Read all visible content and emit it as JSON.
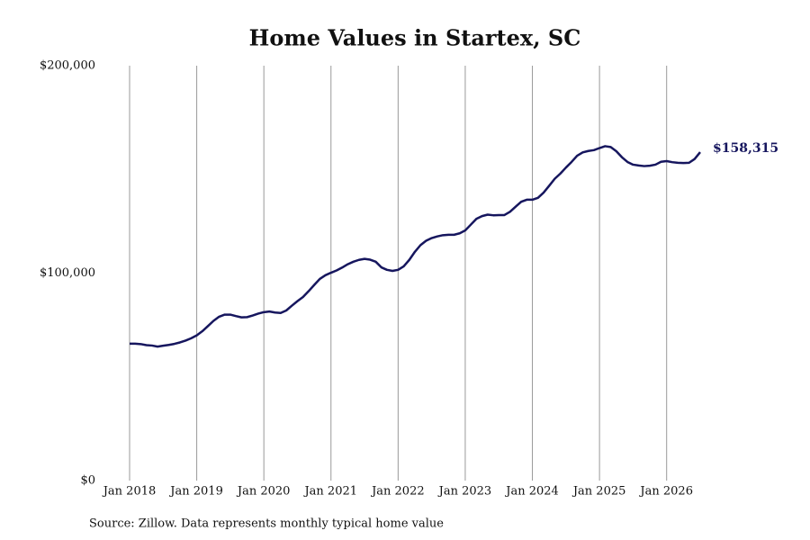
{
  "chart_data": {
    "type": "line",
    "title": "Home Values in Startex, SC",
    "source": "Source: Zillow. Data represents monthly typical home value",
    "color": "#16165e",
    "x": [
      "2018-01",
      "2018-02",
      "2018-03",
      "2018-04",
      "2018-05",
      "2018-06",
      "2018-07",
      "2018-08",
      "2018-09",
      "2018-10",
      "2018-11",
      "2018-12",
      "2019-01",
      "2019-02",
      "2019-03",
      "2019-04",
      "2019-05",
      "2019-06",
      "2019-07",
      "2019-08",
      "2019-09",
      "2019-10",
      "2019-11",
      "2019-12",
      "2020-01",
      "2020-02",
      "2020-03",
      "2020-04",
      "2020-05",
      "2020-06",
      "2020-07",
      "2020-08",
      "2020-09",
      "2020-10",
      "2020-11",
      "2020-12",
      "2021-01",
      "2021-02",
      "2021-03",
      "2021-04",
      "2021-05",
      "2021-06",
      "2021-07",
      "2021-08",
      "2021-09",
      "2021-10",
      "2021-11",
      "2021-12",
      "2022-01",
      "2022-02",
      "2022-03",
      "2022-04",
      "2022-05",
      "2022-06",
      "2022-07",
      "2022-08",
      "2022-09",
      "2022-10",
      "2022-11",
      "2022-12",
      "2023-01",
      "2023-02",
      "2023-03",
      "2023-04",
      "2023-05",
      "2023-06",
      "2023-07",
      "2023-08",
      "2023-09",
      "2023-10",
      "2023-11",
      "2023-12",
      "2024-01",
      "2024-02",
      "2024-03",
      "2024-04",
      "2024-05",
      "2024-06",
      "2024-07",
      "2024-08",
      "2024-09",
      "2024-10",
      "2024-11",
      "2024-12",
      "2025-01",
      "2025-02",
      "2025-03",
      "2025-04",
      "2025-05",
      "2025-06",
      "2025-07",
      "2025-08",
      "2025-09",
      "2025-10",
      "2025-11",
      "2025-12",
      "2026-01",
      "2026-02",
      "2026-03",
      "2026-04",
      "2026-05",
      "2026-06",
      "2026-07"
    ],
    "values": [
      66000,
      66000,
      65800,
      65300,
      65100,
      64600,
      65000,
      65400,
      65900,
      66600,
      67500,
      68600,
      70000,
      72000,
      74500,
      77000,
      79000,
      80000,
      80000,
      79300,
      78700,
      78800,
      79600,
      80500,
      81200,
      81500,
      81000,
      80800,
      82000,
      84300,
      86500,
      88500,
      91300,
      94300,
      97200,
      99000,
      100200,
      101300,
      102700,
      104300,
      105500,
      106400,
      106900,
      106500,
      105500,
      102800,
      101600,
      101100,
      101600,
      103300,
      106400,
      110300,
      113500,
      115600,
      116900,
      117700,
      118300,
      118500,
      118500,
      119200,
      120600,
      123400,
      126200,
      127500,
      128200,
      127900,
      128000,
      128000,
      129600,
      132000,
      134400,
      135400,
      135400,
      136300,
      138800,
      142100,
      145500,
      148000,
      150900,
      153600,
      156600,
      158200,
      158900,
      159300,
      160300,
      161200,
      160800,
      158800,
      155900,
      153600,
      152300,
      151900,
      151600,
      151800,
      152300,
      153700,
      154000,
      153500,
      153200,
      153100,
      153200,
      155000,
      158315
    ],
    "value_labels": [
      null,
      null,
      null,
      null,
      null,
      null,
      null,
      null,
      null,
      null,
      null,
      null,
      null,
      null,
      null,
      null,
      null,
      null,
      null,
      null,
      null,
      null,
      null,
      null,
      null,
      null,
      null,
      null,
      null,
      null,
      null,
      null,
      null,
      null,
      null,
      null,
      null,
      null,
      null,
      null,
      null,
      null,
      null,
      null,
      null,
      null,
      null,
      null,
      null,
      null,
      null,
      null,
      null,
      null,
      null,
      null,
      null,
      null,
      null,
      null,
      null,
      null,
      null,
      null,
      null,
      null,
      null,
      null,
      null,
      null,
      null,
      null,
      null,
      null,
      null,
      null,
      null,
      null,
      null,
      null,
      null,
      null,
      null,
      null,
      null,
      null,
      null,
      null,
      null,
      null,
      null,
      null,
      null,
      null,
      null,
      null,
      null,
      null,
      null,
      null,
      null,
      null,
      "$158,315"
    ],
    "xlim": [
      "2018-01",
      "2026-07"
    ],
    "xticks": [
      {
        "value": "2018-01",
        "label": "Jan 2018"
      },
      {
        "value": "2019-01",
        "label": "Jan 2019"
      },
      {
        "value": "2020-01",
        "label": "Jan 2020"
      },
      {
        "value": "2021-01",
        "label": "Jan 2021"
      },
      {
        "value": "2022-01",
        "label": "Jan 2022"
      },
      {
        "value": "2023-01",
        "label": "Jan 2023"
      },
      {
        "value": "2024-01",
        "label": "Jan 2024"
      },
      {
        "value": "2025-01",
        "label": "Jan 2025"
      },
      {
        "value": "2026-01",
        "label": "Jan 2026"
      }
    ],
    "ylim": [
      0,
      200000
    ],
    "yticks": [
      {
        "value": 0,
        "label": "$0"
      },
      {
        "value": 100000,
        "label": "$100,000"
      },
      {
        "value": 200000,
        "label": "$200,000"
      }
    ],
    "grid": "x"
  }
}
